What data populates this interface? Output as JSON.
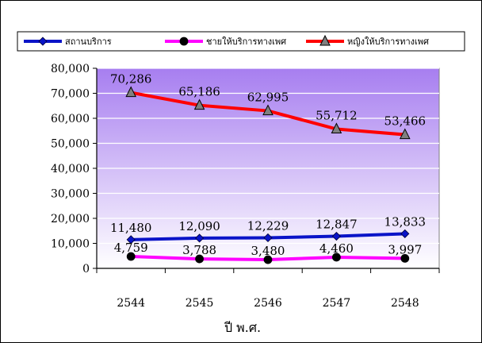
{
  "chart_data": {
    "type": "line",
    "title": "",
    "xlabel": "ปี พ.ศ.",
    "ylabel": "",
    "categories": [
      "2544",
      "2545",
      "2546",
      "2547",
      "2548"
    ],
    "ylim": [
      0,
      80000
    ],
    "yticks": [
      "0",
      "10,000",
      "20,000",
      "30,000",
      "40,000",
      "50,000",
      "60,000",
      "70,000",
      "80,000"
    ],
    "grid": true,
    "legend": "top",
    "series": [
      {
        "name": "สถานบริการ",
        "color": "#0a14c8",
        "marker": "diamond",
        "values": [
          11480,
          12090,
          12229,
          12847,
          13833
        ],
        "labels": [
          "11,480",
          "12,090",
          "12,229",
          "12,847",
          "13,833"
        ]
      },
      {
        "name": "ชายให้บริการทางเพศ",
        "color": "#ff00ff",
        "marker": "circle",
        "values": [
          4759,
          3788,
          3480,
          4460,
          3997
        ],
        "labels": [
          "4,759",
          "3,788",
          "3,480",
          "4,460",
          "3,997"
        ]
      },
      {
        "name": "หญิงให้บริการทางเพศ",
        "color": "#ff0000",
        "marker": "triangle",
        "values": [
          70286,
          65186,
          62995,
          55712,
          53466
        ],
        "labels": [
          "70,286",
          "65,186",
          "62,995",
          "55,712",
          "53,466"
        ]
      }
    ],
    "colors": {
      "plot_top": "#a77ef0",
      "plot_bottom": "#ffffff"
    }
  }
}
